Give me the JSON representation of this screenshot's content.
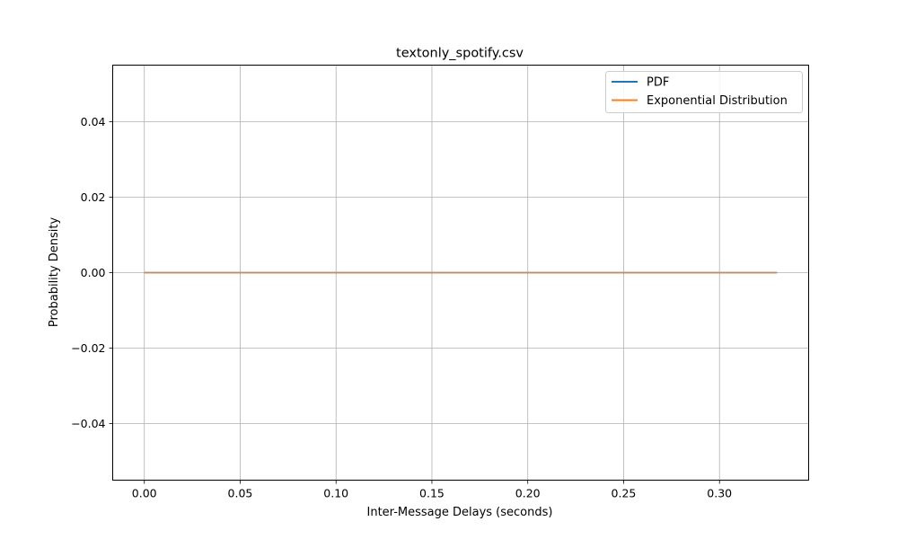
{
  "chart_data": {
    "type": "line",
    "title": "textonly_spotify.csv",
    "xlabel": "Inter-Message Delays (seconds)",
    "ylabel": "Probability Density",
    "xlim": [
      -0.0165,
      0.3465
    ],
    "ylim": [
      -0.055,
      0.055
    ],
    "xticks": [
      0.0,
      0.05,
      0.1,
      0.15,
      0.2,
      0.25,
      0.3
    ],
    "xtick_labels": [
      "0.00",
      "0.05",
      "0.10",
      "0.15",
      "0.20",
      "0.25",
      "0.30"
    ],
    "yticks": [
      -0.04,
      -0.02,
      0.0,
      0.02,
      0.04
    ],
    "ytick_labels": [
      "−0.04",
      "−0.02",
      "0.00",
      "0.02",
      "0.04"
    ],
    "grid": true,
    "legend_position": "top-right",
    "series": [
      {
        "name": "PDF",
        "color": "#1f77b4",
        "x": [
          0.0,
          0.33
        ],
        "y": [
          0.0,
          0.0
        ]
      },
      {
        "name": "Exponential Distribution",
        "color": "#ff7f0e",
        "x": [
          0.0,
          0.33
        ],
        "y": [
          0.0,
          0.0
        ]
      }
    ]
  }
}
